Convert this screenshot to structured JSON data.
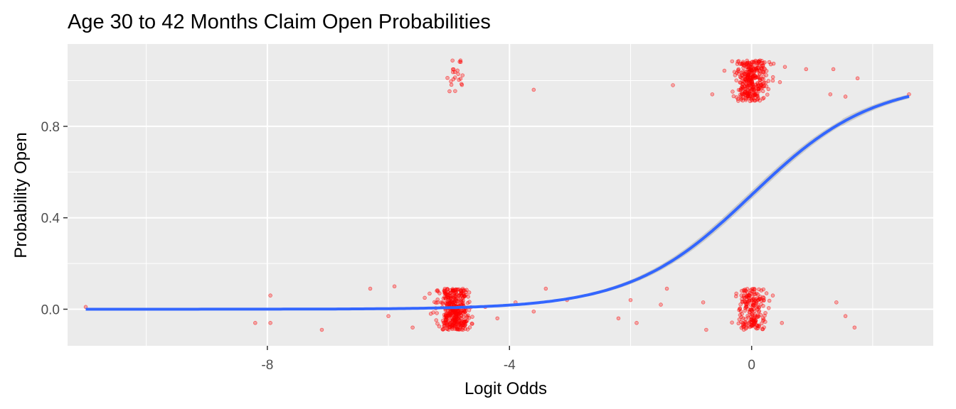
{
  "chart_data": {
    "type": "scatter",
    "title": "Age 30 to 42 Months Claim Open Probabilities",
    "xlabel": "Logit Odds",
    "ylabel": "Probability Open",
    "xlim": [
      -11.3,
      3.0
    ],
    "ylim": [
      -0.16,
      1.16
    ],
    "x_ticks": [
      -8,
      -4,
      0
    ],
    "x_tick_labels": [
      "-8",
      "-4",
      "0"
    ],
    "y_ticks": [
      0.0,
      0.4,
      0.8
    ],
    "y_tick_labels": [
      "0.0",
      "0.4",
      "0.8"
    ],
    "grid": true,
    "colors": {
      "panel": "#ebebeb",
      "grid": "#ffffff",
      "points": "#ff0000",
      "fit_line": "#3366ff",
      "confidence_band": "#c4c4c4"
    },
    "series": [
      {
        "kind": "jittered-points",
        "clusters": [
          {
            "x_center": -4.9,
            "x_spread": 0.12,
            "outcome": 0,
            "count": 400,
            "y_jitter": 0.09
          },
          {
            "x_center": -4.9,
            "x_spread": 0.08,
            "outcome": 1,
            "count": 22,
            "y_jitter": 0.09
          },
          {
            "x_center": 0.0,
            "x_spread": 0.12,
            "outcome": 0,
            "count": 200,
            "y_jitter": 0.09
          },
          {
            "x_center": 0.0,
            "x_spread": 0.12,
            "outcome": 1,
            "count": 330,
            "y_jitter": 0.09
          }
        ],
        "scattered_points": [
          {
            "x": -11.0,
            "y": 0.01
          },
          {
            "x": -8.2,
            "y": -0.06
          },
          {
            "x": -7.95,
            "y": 0.06
          },
          {
            "x": -7.95,
            "y": -0.06
          },
          {
            "x": -7.1,
            "y": -0.09
          },
          {
            "x": -6.3,
            "y": 0.09
          },
          {
            "x": -6.0,
            "y": -0.03
          },
          {
            "x": -5.9,
            "y": 0.1
          },
          {
            "x": -5.6,
            "y": -0.08
          },
          {
            "x": -5.4,
            "y": 0.05
          },
          {
            "x": -5.3,
            "y": -0.02
          },
          {
            "x": -5.2,
            "y": 0.08
          },
          {
            "x": -5.1,
            "y": -0.05
          },
          {
            "x": -4.4,
            "y": 0.01
          },
          {
            "x": -4.2,
            "y": -0.04
          },
          {
            "x": -3.9,
            "y": 0.03
          },
          {
            "x": -3.6,
            "y": -0.01
          },
          {
            "x": -3.4,
            "y": 0.09
          },
          {
            "x": -3.05,
            "y": 0.04
          },
          {
            "x": -2.2,
            "y": -0.04
          },
          {
            "x": -2.0,
            "y": 0.04
          },
          {
            "x": -1.9,
            "y": -0.06
          },
          {
            "x": -1.4,
            "y": 0.09
          },
          {
            "x": -1.5,
            "y": 0.02
          },
          {
            "x": -0.8,
            "y": 0.03
          },
          {
            "x": -0.75,
            "y": -0.09
          },
          {
            "x": 0.35,
            "y": 0.06
          },
          {
            "x": 0.5,
            "y": -0.06
          },
          {
            "x": 1.4,
            "y": 0.03
          },
          {
            "x": 1.55,
            "y": -0.03
          },
          {
            "x": 1.7,
            "y": -0.08
          },
          {
            "x": -3.6,
            "y": 0.96
          },
          {
            "x": -1.3,
            "y": 0.98
          },
          {
            "x": -0.65,
            "y": 0.94
          },
          {
            "x": 0.35,
            "y": 1.0
          },
          {
            "x": 0.55,
            "y": 1.06
          },
          {
            "x": 0.9,
            "y": 1.05
          },
          {
            "x": 1.3,
            "y": 0.94
          },
          {
            "x": 1.35,
            "y": 1.05
          },
          {
            "x": 1.55,
            "y": 0.93
          },
          {
            "x": 1.75,
            "y": 1.01
          },
          {
            "x": 2.6,
            "y": 0.94
          }
        ]
      },
      {
        "kind": "logistic-fit",
        "x_range": [
          -11.0,
          2.6
        ],
        "se_band": 0.015
      }
    ]
  }
}
